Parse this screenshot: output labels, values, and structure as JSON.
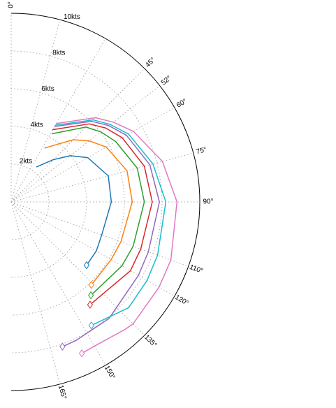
{
  "chart_data": {
    "type": "line",
    "projection": "polar",
    "radial_max_kts": 10,
    "angle_range_deg": [
      0,
      180
    ],
    "grid": true,
    "legend": "none",
    "radial_ticks": [
      {
        "value": 2,
        "label": "2kts"
      },
      {
        "value": 4,
        "label": "4kts"
      },
      {
        "value": 6,
        "label": "6kts"
      },
      {
        "value": 8,
        "label": "8kts"
      },
      {
        "value": 10,
        "label": "10kts"
      }
    ],
    "angle_ticks": [
      {
        "value": 0,
        "label": "0°"
      },
      {
        "value": 45,
        "label": "45°"
      },
      {
        "value": 52,
        "label": "52°"
      },
      {
        "value": 60,
        "label": "60°"
      },
      {
        "value": 75,
        "label": "75°"
      },
      {
        "value": 90,
        "label": "90°"
      },
      {
        "value": 110,
        "label": "110°"
      },
      {
        "value": 120,
        "label": "120°"
      },
      {
        "value": 135,
        "label": "135°"
      },
      {
        "value": 150,
        "label": "150°"
      },
      {
        "value": 165,
        "label": "165°"
      }
    ],
    "grid_angles": [
      0,
      15,
      30,
      45,
      52,
      60,
      75,
      90,
      110,
      120,
      135,
      150,
      165
    ],
    "series": [
      {
        "color": "#1f77b4",
        "points": [
          [
            36,
            2.3
          ],
          [
            45,
            3.17
          ],
          [
            52,
            3.98
          ],
          [
            60,
            4.69
          ],
          [
            75,
            5.33
          ],
          [
            90,
            5.31
          ],
          [
            110,
            5.11
          ],
          [
            120,
            5.21
          ],
          [
            130,
            5.22
          ]
        ],
        "marker": [
          130,
          5.22
        ]
      },
      {
        "color": "#ff7f0e",
        "points": [
          [
            32,
            3.37
          ],
          [
            45,
            4.66
          ],
          [
            52,
            5.25
          ],
          [
            60,
            5.82
          ],
          [
            75,
            6.36
          ],
          [
            90,
            6.42
          ],
          [
            110,
            6.19
          ],
          [
            120,
            6.12
          ],
          [
            136,
            6.12
          ]
        ],
        "marker": [
          136,
          6.12
        ]
      },
      {
        "color": "#2ca02c",
        "points": [
          [
            31,
            4.22
          ],
          [
            45,
            5.61
          ],
          [
            52,
            6.03
          ],
          [
            60,
            6.4
          ],
          [
            75,
            6.92
          ],
          [
            90,
            7.06
          ],
          [
            110,
            6.88
          ],
          [
            120,
            6.78
          ],
          [
            139.5,
            6.51
          ]
        ],
        "marker": [
          139.5,
          6.51
        ]
      },
      {
        "color": "#d62728",
        "points": [
          [
            30,
            4.42
          ],
          [
            45,
            5.85
          ],
          [
            52,
            6.36
          ],
          [
            60,
            6.8
          ],
          [
            75,
            7.31
          ],
          [
            90,
            7.48
          ],
          [
            110,
            7.31
          ],
          [
            120,
            7.3
          ],
          [
            142.5,
            6.87
          ]
        ],
        "marker": [
          142.5,
          6.87
        ]
      },
      {
        "color": "#9467bd",
        "points": [
          [
            30,
            4.62
          ],
          [
            45,
            6.04
          ],
          [
            52,
            6.57
          ],
          [
            60,
            7.06
          ],
          [
            75,
            7.61
          ],
          [
            90,
            7.86
          ],
          [
            110,
            7.74
          ],
          [
            120,
            7.79
          ],
          [
            140,
            8.07
          ],
          [
            155,
            8.11
          ],
          [
            160.5,
            8.14
          ]
        ],
        "marker": [
          160.5,
          8.14
        ]
      },
      {
        "color": "#17becf",
        "points": [
          [
            30,
            4.7
          ],
          [
            45,
            6.15
          ],
          [
            52,
            6.67
          ],
          [
            60,
            7.19
          ],
          [
            75,
            7.78
          ],
          [
            90,
            8.2
          ],
          [
            110,
            8.26
          ],
          [
            120,
            8.32
          ],
          [
            132,
            8.38
          ],
          [
            147,
            7.81
          ]
        ],
        "marker": [
          147,
          7.81
        ]
      },
      {
        "color": "#e377c2",
        "points": [
          [
            30,
            4.8
          ],
          [
            45,
            6.31
          ],
          [
            52,
            6.87
          ],
          [
            60,
            7.48
          ],
          [
            75,
            8.3
          ],
          [
            90,
            8.79
          ],
          [
            110,
            9.01
          ],
          [
            120,
            9.05
          ],
          [
            135,
            9.14
          ],
          [
            138,
            9.07
          ],
          [
            150,
            8.83
          ],
          [
            155,
            8.86
          ]
        ],
        "marker": [
          155,
          8.86
        ]
      }
    ]
  }
}
